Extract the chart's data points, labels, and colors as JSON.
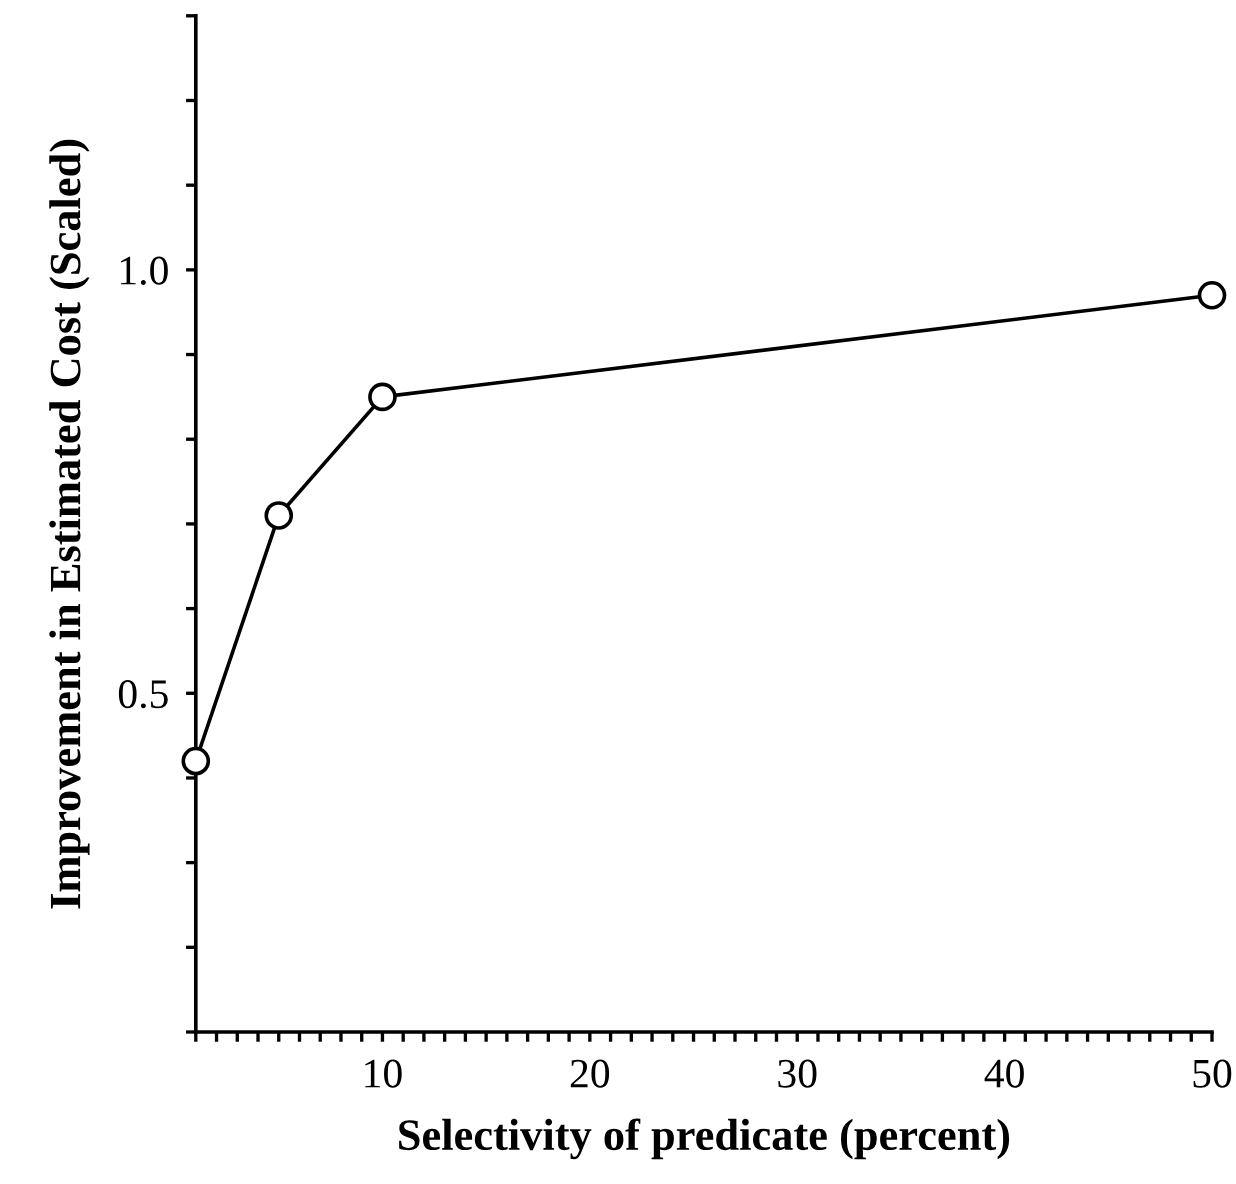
{
  "chart_data": {
    "type": "line",
    "xlabel": "Selectivity of predicate (percent)",
    "ylabel": "Improvement in Estimated Cost (Scaled)",
    "x": [
      1,
      5,
      10,
      50
    ],
    "series": [
      {
        "color": "#000000",
        "values": [
          0.42,
          0.71,
          0.85,
          0.97
        ]
      }
    ],
    "marker": "circle",
    "line_style": "solid",
    "grid": false,
    "legend": false,
    "xlim": [
      1,
      50
    ],
    "ylim": [
      0.1,
      1.3
    ],
    "xticks": [
      {
        "value": 1,
        "label": null
      },
      {
        "value": 2,
        "label": null
      },
      {
        "value": 3,
        "label": null
      },
      {
        "value": 4,
        "label": null
      },
      {
        "value": 5,
        "label": null
      },
      {
        "value": 6,
        "label": null
      },
      {
        "value": 7,
        "label": null
      },
      {
        "value": 8,
        "label": null
      },
      {
        "value": 9,
        "label": null
      },
      10,
      {
        "value": 11,
        "label": null
      },
      {
        "value": 12,
        "label": null
      },
      {
        "value": 13,
        "label": null
      },
      {
        "value": 14,
        "label": null
      },
      {
        "value": 15,
        "label": null
      },
      {
        "value": 16,
        "label": null
      },
      {
        "value": 17,
        "label": null
      },
      {
        "value": 18,
        "label": null
      },
      {
        "value": 19,
        "label": null
      },
      20,
      {
        "value": 21,
        "label": null
      },
      {
        "value": 22,
        "label": null
      },
      {
        "value": 23,
        "label": null
      },
      {
        "value": 24,
        "label": null
      },
      {
        "value": 25,
        "label": null
      },
      {
        "value": 26,
        "label": null
      },
      {
        "value": 27,
        "label": null
      },
      {
        "value": 28,
        "label": null
      },
      {
        "value": 29,
        "label": null
      },
      30,
      {
        "value": 31,
        "label": null
      },
      {
        "value": 32,
        "label": null
      },
      {
        "value": 33,
        "label": null
      },
      {
        "value": 34,
        "label": null
      },
      {
        "value": 35,
        "label": null
      },
      {
        "value": 36,
        "label": null
      },
      {
        "value": 37,
        "label": null
      },
      {
        "value": 38,
        "label": null
      },
      {
        "value": 39,
        "label": null
      },
      40,
      {
        "value": 41,
        "label": null
      },
      {
        "value": 42,
        "label": null
      },
      {
        "value": 43,
        "label": null
      },
      {
        "value": 44,
        "label": null
      },
      {
        "value": 45,
        "label": null
      },
      {
        "value": 46,
        "label": null
      },
      {
        "value": 47,
        "label": null
      },
      {
        "value": 48,
        "label": null
      },
      {
        "value": 49,
        "label": null
      },
      50
    ],
    "yticks": [
      {
        "value": 0.1,
        "label": null
      },
      {
        "value": 0.2,
        "label": null
      },
      {
        "value": 0.3,
        "label": null
      },
      {
        "value": 0.4,
        "label": null
      },
      {
        "value": 0.5,
        "label": "0.5"
      },
      {
        "value": 0.6,
        "label": null
      },
      {
        "value": 0.7,
        "label": null
      },
      {
        "value": 0.8,
        "label": null
      },
      {
        "value": 0.9,
        "label": null
      },
      {
        "value": 1.0,
        "label": "1.0"
      },
      {
        "value": 1.1,
        "label": null
      },
      {
        "value": 1.2,
        "label": null
      },
      {
        "value": 1.3,
        "label": null
      }
    ]
  }
}
